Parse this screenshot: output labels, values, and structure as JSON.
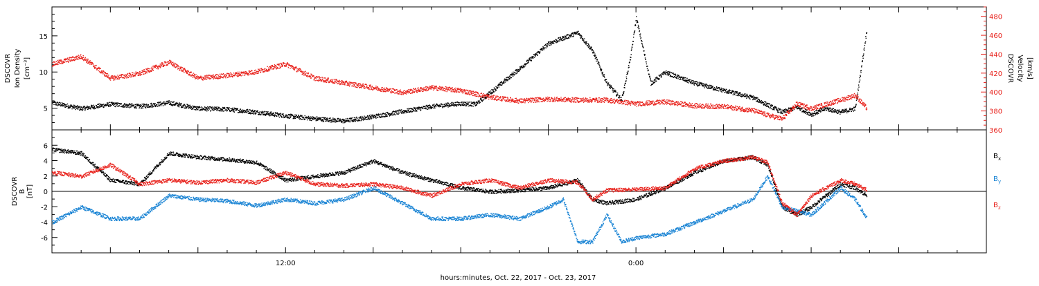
{
  "xlabel": "hours:minutes, Oct. 22, 2017 - Oct. 23, 2017",
  "colors": {
    "black": "#000000",
    "red": "#e8221c",
    "blue": "#1a84d4"
  },
  "chart_data": [
    {
      "type": "scatter",
      "panel": "top",
      "ylabel_left": [
        "DSCOVR",
        "Ion Density",
        "[cm⁻³]"
      ],
      "ylabel_right": [
        "DSCOVR",
        "Velocity",
        "[km/s]"
      ],
      "x_ticklabels": [
        {
          "hour": 12,
          "label": "12:00"
        },
        {
          "hour": 24,
          "label": "0:00"
        }
      ],
      "xlim_hours": [
        4,
        36
      ],
      "ylim_left": [
        2,
        19
      ],
      "yticks_left": [
        5,
        10,
        15
      ],
      "ylim_right": [
        360,
        490
      ],
      "yticks_right": [
        360,
        380,
        400,
        420,
        440,
        460,
        480
      ],
      "series": [
        {
          "color": "#000000",
          "axis": "left",
          "x": [
            4.0,
            5.0,
            6.0,
            7.0,
            8.0,
            9.0,
            10.0,
            11.0,
            12.0,
            13.0,
            14.0,
            15.0,
            16.0,
            17.0,
            18.0,
            18.5,
            19.0,
            20.0,
            21.0,
            22.0,
            22.5,
            23.0,
            23.5,
            23.8,
            24.0,
            24.5,
            25.0,
            26.0,
            27.0,
            28.0,
            28.5,
            29.0,
            29.5,
            30.0,
            30.5,
            31.0,
            31.5,
            31.9
          ],
          "y": [
            5.8,
            5.0,
            5.6,
            5.3,
            5.8,
            5.0,
            4.9,
            4.5,
            4.0,
            3.6,
            3.3,
            3.9,
            4.6,
            5.3,
            5.7,
            5.6,
            7.2,
            10.5,
            14.0,
            15.5,
            13.0,
            8.5,
            6.2,
            12.0,
            17.5,
            8.5,
            10.0,
            8.5,
            7.5,
            6.5,
            5.5,
            4.5,
            5.2,
            4.2,
            5.0,
            4.5,
            5.0,
            16.0
          ]
        },
        {
          "color": "#e8221c",
          "axis": "right",
          "x": [
            4.0,
            5.0,
            6.0,
            7.0,
            8.0,
            9.0,
            10.0,
            11.0,
            12.0,
            13.0,
            14.0,
            15.0,
            16.0,
            17.0,
            18.0,
            19.0,
            20.0,
            21.0,
            22.0,
            23.0,
            24.0,
            25.0,
            26.0,
            27.0,
            28.0,
            28.5,
            29.0,
            29.5,
            30.0,
            31.0,
            31.5,
            31.9
          ],
          "y": [
            430,
            438,
            415,
            420,
            432,
            415,
            418,
            422,
            430,
            415,
            410,
            405,
            400,
            405,
            402,
            395,
            391,
            393,
            392,
            392,
            388,
            390,
            386,
            385,
            381,
            376,
            372,
            388,
            383,
            392,
            397,
            383
          ]
        }
      ]
    },
    {
      "type": "scatter",
      "panel": "bottom",
      "ylabel_left": [
        "DSCOVR",
        "B",
        "[nT]"
      ],
      "x_ticklabels": [
        {
          "hour": 12,
          "label": "12:00"
        },
        {
          "hour": 24,
          "label": "0:00"
        }
      ],
      "xlim_hours": [
        4,
        36
      ],
      "ylim": [
        -8,
        8
      ],
      "yticks": [
        -6,
        -4,
        -2,
        0,
        2,
        4,
        6
      ],
      "zero_line": true,
      "series": [
        {
          "name": "Bx",
          "label_main": "B",
          "label_sub": "x",
          "color": "#000000",
          "x": [
            4.0,
            5.0,
            6.0,
            7.0,
            8.0,
            9.0,
            10.0,
            11.0,
            12.0,
            13.0,
            14.0,
            15.0,
            16.0,
            17.0,
            18.0,
            19.0,
            20.0,
            21.0,
            22.0,
            22.5,
            23.0,
            24.0,
            25.0,
            26.0,
            27.0,
            28.0,
            28.5,
            29.0,
            29.5,
            30.0,
            31.0,
            31.5,
            31.9
          ],
          "y": [
            5.5,
            5.0,
            1.5,
            1.0,
            5.0,
            4.5,
            4.2,
            3.8,
            1.5,
            2.0,
            2.5,
            4.0,
            2.5,
            1.5,
            0.5,
            0.0,
            0.2,
            0.5,
            1.5,
            -1.0,
            -1.5,
            -1.0,
            0.5,
            2.5,
            4.0,
            4.5,
            3.5,
            -2.0,
            -3.0,
            -2.0,
            1.0,
            0.5,
            -0.5
          ]
        },
        {
          "name": "By",
          "label_main": "B",
          "label_sub": "y",
          "color": "#1a84d4",
          "x": [
            4.0,
            5.0,
            6.0,
            7.0,
            8.0,
            9.0,
            10.0,
            11.0,
            12.0,
            13.0,
            14.0,
            15.0,
            16.0,
            17.0,
            18.0,
            19.0,
            20.0,
            21.0,
            21.5,
            22.0,
            22.5,
            23.0,
            23.5,
            24.0,
            25.0,
            26.0,
            27.0,
            28.0,
            28.5,
            29.0,
            30.0,
            31.0,
            31.5,
            31.9
          ],
          "y": [
            -4.0,
            -2.0,
            -3.5,
            -3.5,
            -0.5,
            -1.0,
            -1.2,
            -1.8,
            -1.0,
            -1.5,
            -1.0,
            0.5,
            -1.5,
            -3.5,
            -3.5,
            -3.0,
            -3.5,
            -2.0,
            -1.0,
            -6.5,
            -6.5,
            -3.0,
            -6.5,
            -6.0,
            -5.5,
            -4.0,
            -2.5,
            -1.0,
            2.0,
            -2.0,
            -3.0,
            0.5,
            -1.0,
            -3.5
          ]
        },
        {
          "name": "Bz",
          "label_main": "B",
          "label_sub": "z",
          "color": "#e8221c",
          "x": [
            4.0,
            5.0,
            6.0,
            7.0,
            8.0,
            9.0,
            10.0,
            11.0,
            12.0,
            13.0,
            14.0,
            15.0,
            16.0,
            17.0,
            18.0,
            19.0,
            20.0,
            21.0,
            22.0,
            22.5,
            23.0,
            24.0,
            25.0,
            26.0,
            27.0,
            28.0,
            28.5,
            29.0,
            29.5,
            30.0,
            31.0,
            31.5,
            31.9
          ],
          "y": [
            2.5,
            2.0,
            3.5,
            1.0,
            1.5,
            1.2,
            1.5,
            1.2,
            2.5,
            1.0,
            0.8,
            1.0,
            0.5,
            -0.5,
            1.0,
            1.5,
            0.5,
            1.5,
            1.2,
            -1.0,
            0.2,
            0.3,
            0.5,
            3.0,
            4.0,
            4.5,
            3.8,
            -1.5,
            -3.0,
            -0.5,
            1.5,
            1.0,
            0.2
          ]
        }
      ]
    }
  ]
}
